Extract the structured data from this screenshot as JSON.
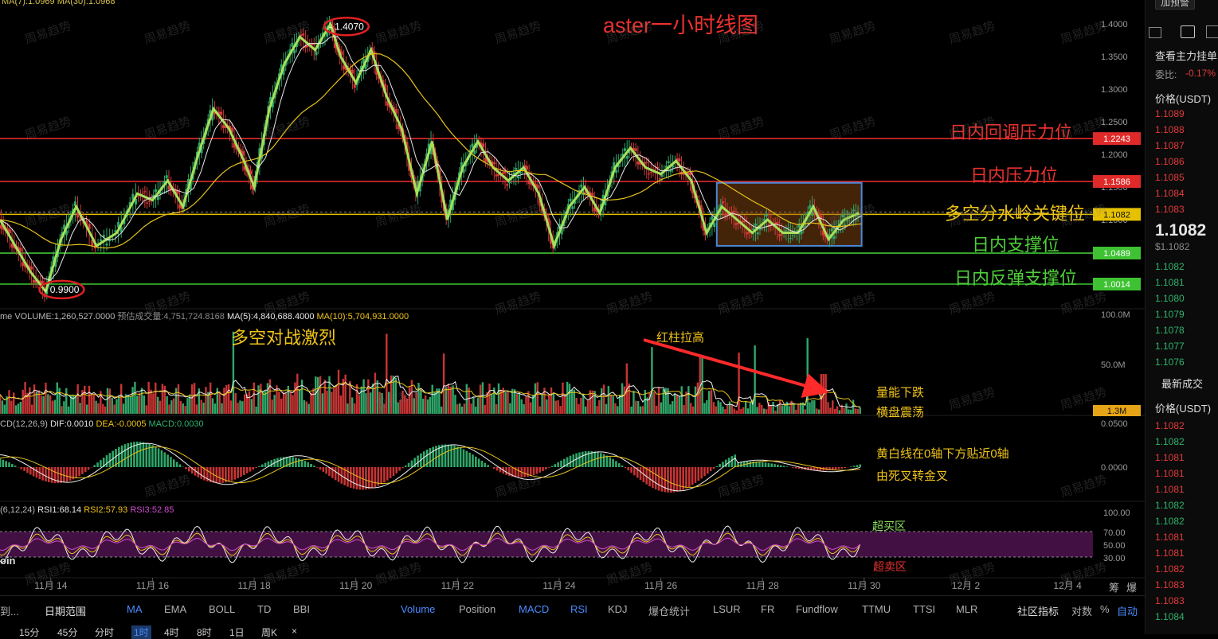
{
  "chart_data": {
    "type": "candlestick",
    "title": "aster一小时线图",
    "x_tick_labels": [
      "11月 14",
      "11月 16",
      "11月 18",
      "11月 20",
      "11月 22",
      "11月 24",
      "11月 26",
      "11月 28",
      "11月 30",
      "12月 2",
      "12月 4"
    ],
    "y_tick_labels": [
      "1.4000",
      "1.3500",
      "1.3000",
      "1.2500",
      "1.2000",
      "1.1500",
      "1.1000",
      "1.0500",
      "1.0000"
    ],
    "ylim": [
      0.98,
      1.415
    ],
    "price_path": [
      [
        13.0,
        1.1
      ],
      [
        13.3,
        1.06
      ],
      [
        13.6,
        1.02
      ],
      [
        13.9,
        0.99
      ],
      [
        14.2,
        1.07
      ],
      [
        14.5,
        1.12
      ],
      [
        14.9,
        1.06
      ],
      [
        15.3,
        1.08
      ],
      [
        15.7,
        1.14
      ],
      [
        16.0,
        1.13
      ],
      [
        16.3,
        1.16
      ],
      [
        16.6,
        1.12
      ],
      [
        16.9,
        1.2
      ],
      [
        17.2,
        1.27
      ],
      [
        17.5,
        1.24
      ],
      [
        17.8,
        1.19
      ],
      [
        18.0,
        1.15
      ],
      [
        18.3,
        1.27
      ],
      [
        18.6,
        1.34
      ],
      [
        18.9,
        1.38
      ],
      [
        19.2,
        1.36
      ],
      [
        19.5,
        1.4
      ],
      [
        19.7,
        1.35
      ],
      [
        20.0,
        1.31
      ],
      [
        20.3,
        1.36
      ],
      [
        20.6,
        1.29
      ],
      [
        20.9,
        1.24
      ],
      [
        21.2,
        1.14
      ],
      [
        21.5,
        1.22
      ],
      [
        21.8,
        1.1
      ],
      [
        22.1,
        1.18
      ],
      [
        22.4,
        1.22
      ],
      [
        22.7,
        1.18
      ],
      [
        23.0,
        1.16
      ],
      [
        23.3,
        1.18
      ],
      [
        23.6,
        1.14
      ],
      [
        23.9,
        1.06
      ],
      [
        24.2,
        1.12
      ],
      [
        24.5,
        1.15
      ],
      [
        24.8,
        1.11
      ],
      [
        25.1,
        1.18
      ],
      [
        25.4,
        1.21
      ],
      [
        25.7,
        1.18
      ],
      [
        26.0,
        1.17
      ],
      [
        26.3,
        1.19
      ],
      [
        26.6,
        1.16
      ],
      [
        26.9,
        1.08
      ],
      [
        27.2,
        1.12
      ],
      [
        27.5,
        1.1
      ],
      [
        27.8,
        1.08
      ],
      [
        28.1,
        1.1
      ],
      [
        28.4,
        1.08
      ],
      [
        28.7,
        1.08
      ],
      [
        29.0,
        1.12
      ],
      [
        29.3,
        1.07
      ],
      [
        29.6,
        1.1
      ],
      [
        29.9,
        1.11
      ]
    ],
    "high_label": "1.4070",
    "low_label": "0.9900",
    "last_price_label": "1.1082",
    "levels": [
      {
        "name": "日内回调压力位",
        "value": 1.2243,
        "label": "1.2243",
        "color": "#e02a2a"
      },
      {
        "name": "日内压力位",
        "value": 1.1586,
        "label": "1.1586",
        "color": "#e02a2a"
      },
      {
        "name": "多空分水岭关键位",
        "value": 1.1082,
        "label": "1.1082",
        "color": "#e6c100"
      },
      {
        "name": "日内支撑位",
        "value": 1.0489,
        "label": "1.0489",
        "color": "#3ec233"
      },
      {
        "name": "日内反弹支撑位",
        "value": 1.0014,
        "label": "1.0014",
        "color": "#3ec233"
      }
    ],
    "ma_legend": "MA(7):1.0969  MA(30):1.0968",
    "volume": {
      "legend_prefix": "me VOLUME:1,260,527.0000",
      "legend_est": "预估成交量:4,751,724.8168",
      "legend_ma5": "MA(5):4,840,688.4000",
      "legend_ma10": "MA(10):5,704,931.0000",
      "y_tick_labels": [
        "100.0M",
        "50.0M"
      ],
      "last_label": "1.3M"
    },
    "macd": {
      "legend_prefix": "CD(12,26,9)",
      "dif": "DIF:0.0010",
      "dea": "DEA:-0.0005",
      "macd": "MACD:0.0030",
      "y_tick_labels": [
        "0.0500",
        "0.0000"
      ]
    },
    "rsi": {
      "legend_prefix": "(6,12,24)",
      "rsi1": "RSI1:68.14",
      "rsi2": "RSI2:57.93",
      "rsi3": "RSI3:52.85",
      "y_tick_labels": [
        "100.00",
        "70.00",
        "50.00",
        "30.00"
      ]
    },
    "annotations": {
      "battle": "多空对战激烈",
      "red_bar": "红柱拉高",
      "vol_down": "量能下跌",
      "sideways": "横盘震荡",
      "macd_note1": "黄白线在0轴下方贴近0轴",
      "macd_note2": "由死叉转金叉",
      "overbought": "超买区",
      "oversold": "超卖区",
      "watermark": "周易趋势"
    }
  },
  "side_panel": {
    "top_button": "加预警",
    "mainforce": "查看主力挂单",
    "ratio_label": "委比:",
    "ratio_value": "-0.17%",
    "price_header": "价格(USDT)",
    "asks": [
      "1.1089",
      "1.1088",
      "1.1087",
      "1.1086",
      "1.1085",
      "1.1084",
      "1.1083"
    ],
    "last_price": "1.1082",
    "last_price_usd": "$1.1082",
    "bids": [
      "1.1082",
      "1.1081",
      "1.1080",
      "1.1079",
      "1.1078",
      "1.1077",
      "1.1076"
    ],
    "trades_header": "最新成交",
    "trades_price_header": "价格(USDT)",
    "trades": [
      {
        "p": "1.1082",
        "c": "sell"
      },
      {
        "p": "1.1082",
        "c": "buy"
      },
      {
        "p": "1.1081",
        "c": "sell"
      },
      {
        "p": "1.1081",
        "c": "sell"
      },
      {
        "p": "1.1081",
        "c": "sell"
      },
      {
        "p": "1.1082",
        "c": "buy"
      },
      {
        "p": "1.1082",
        "c": "buy"
      },
      {
        "p": "1.1081",
        "c": "sell"
      },
      {
        "p": "1.1081",
        "c": "sell"
      },
      {
        "p": "1.1082",
        "c": "sell"
      },
      {
        "p": "1.1083",
        "c": "sell"
      },
      {
        "p": "1.1083",
        "c": "sell"
      },
      {
        "p": "1.1084",
        "c": "buy"
      }
    ]
  },
  "toolbar": {
    "left_cut": "到...",
    "range": "日期范围",
    "indicators": [
      "MA",
      "EMA",
      "BOLL",
      "TD",
      "BBI",
      "Volume",
      "Position",
      "MACD",
      "RSI",
      "KDJ",
      "爆仓统计",
      "LSUR",
      "FR",
      "Fundflow",
      "TTMU",
      "TTSI",
      "MLR"
    ],
    "community": "社区指标",
    "log": "对数",
    "percent": "%",
    "auto": "自动",
    "right_cut1": "筹",
    "right_cut2": "爆",
    "intervals": [
      "15分",
      "45分",
      "分时",
      "1时",
      "4时",
      "8时",
      "1日",
      "周K"
    ],
    "close": "×",
    "coin_cut": "oin"
  }
}
